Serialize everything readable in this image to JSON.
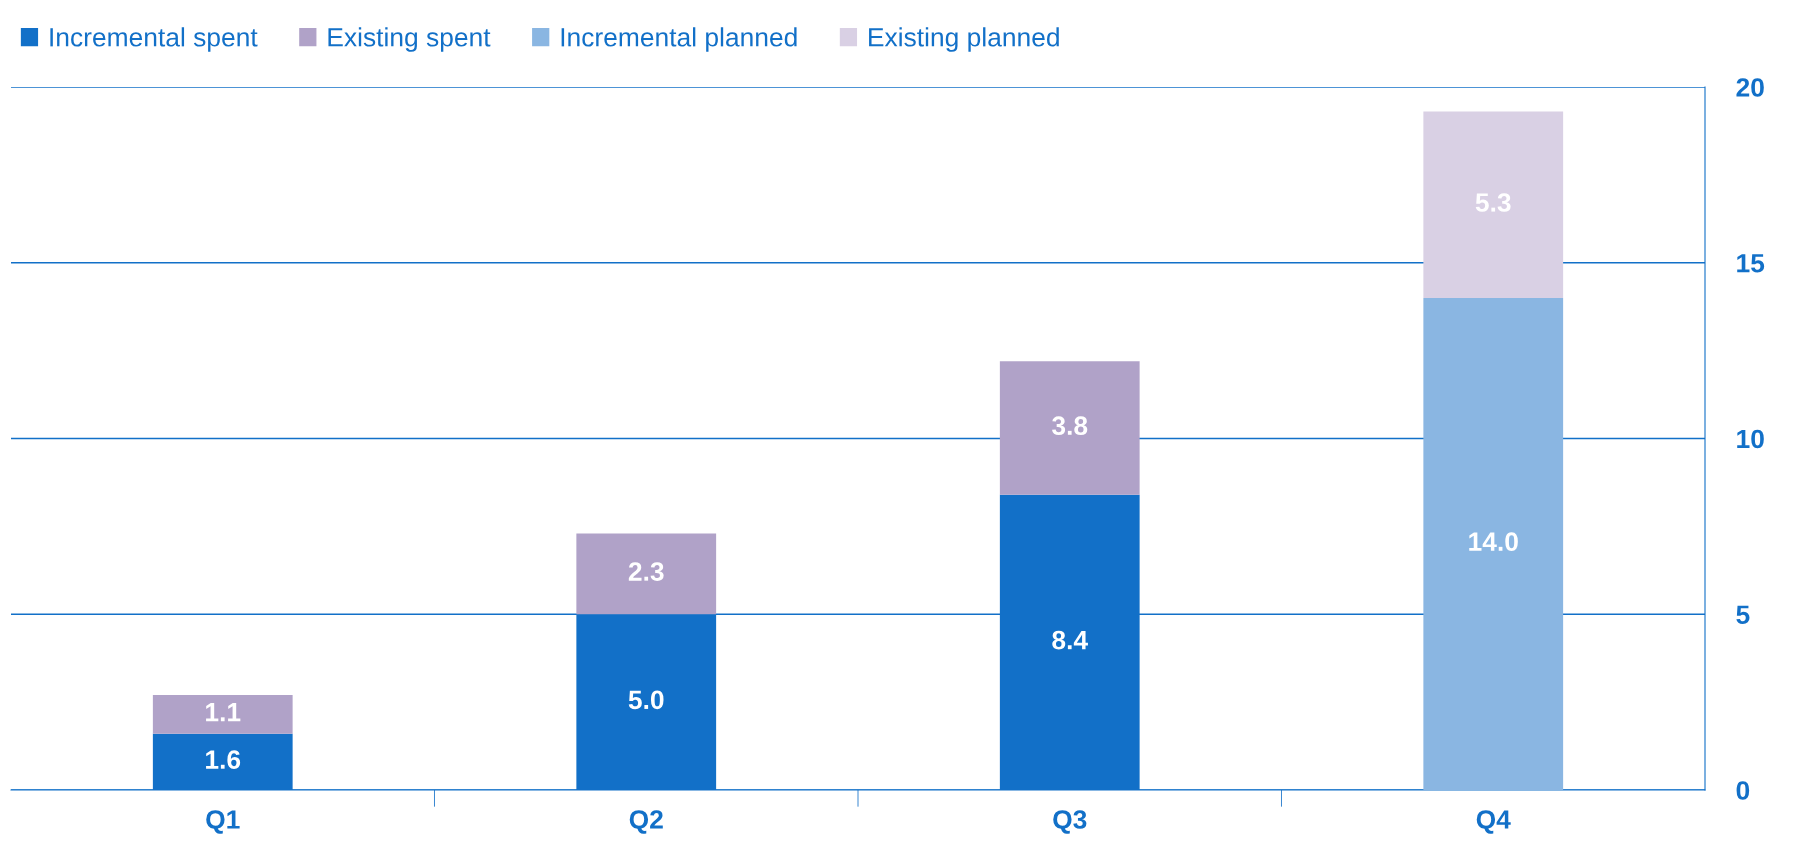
{
  "chart_data": {
    "type": "bar",
    "stacked": true,
    "categories": [
      "Q1",
      "Q2",
      "Q3",
      "Q4"
    ],
    "series": [
      {
        "name": "Incremental spent",
        "color": "#1270c8",
        "values": [
          1.6,
          5.0,
          8.4,
          null
        ],
        "value_labels": [
          "1.6",
          "5.0",
          "8.4",
          null
        ]
      },
      {
        "name": "Existing spent",
        "color": "#b0a2c8",
        "values": [
          1.1,
          2.3,
          3.8,
          null
        ],
        "value_labels": [
          "1.1",
          "2.3",
          "3.8",
          null
        ]
      },
      {
        "name": "Incremental planned",
        "color": "#8ab6e2",
        "values": [
          null,
          null,
          null,
          14.0
        ],
        "value_labels": [
          null,
          null,
          null,
          "14.0"
        ]
      },
      {
        "name": "Existing planned",
        "color": "#d9d0e4",
        "values": [
          null,
          null,
          null,
          5.3
        ],
        "value_labels": [
          null,
          null,
          null,
          "5.3"
        ]
      }
    ],
    "ylim": [
      0,
      20
    ],
    "yticks": [
      0,
      5,
      10,
      15,
      20
    ],
    "grid": "y",
    "legend": "top left"
  }
}
